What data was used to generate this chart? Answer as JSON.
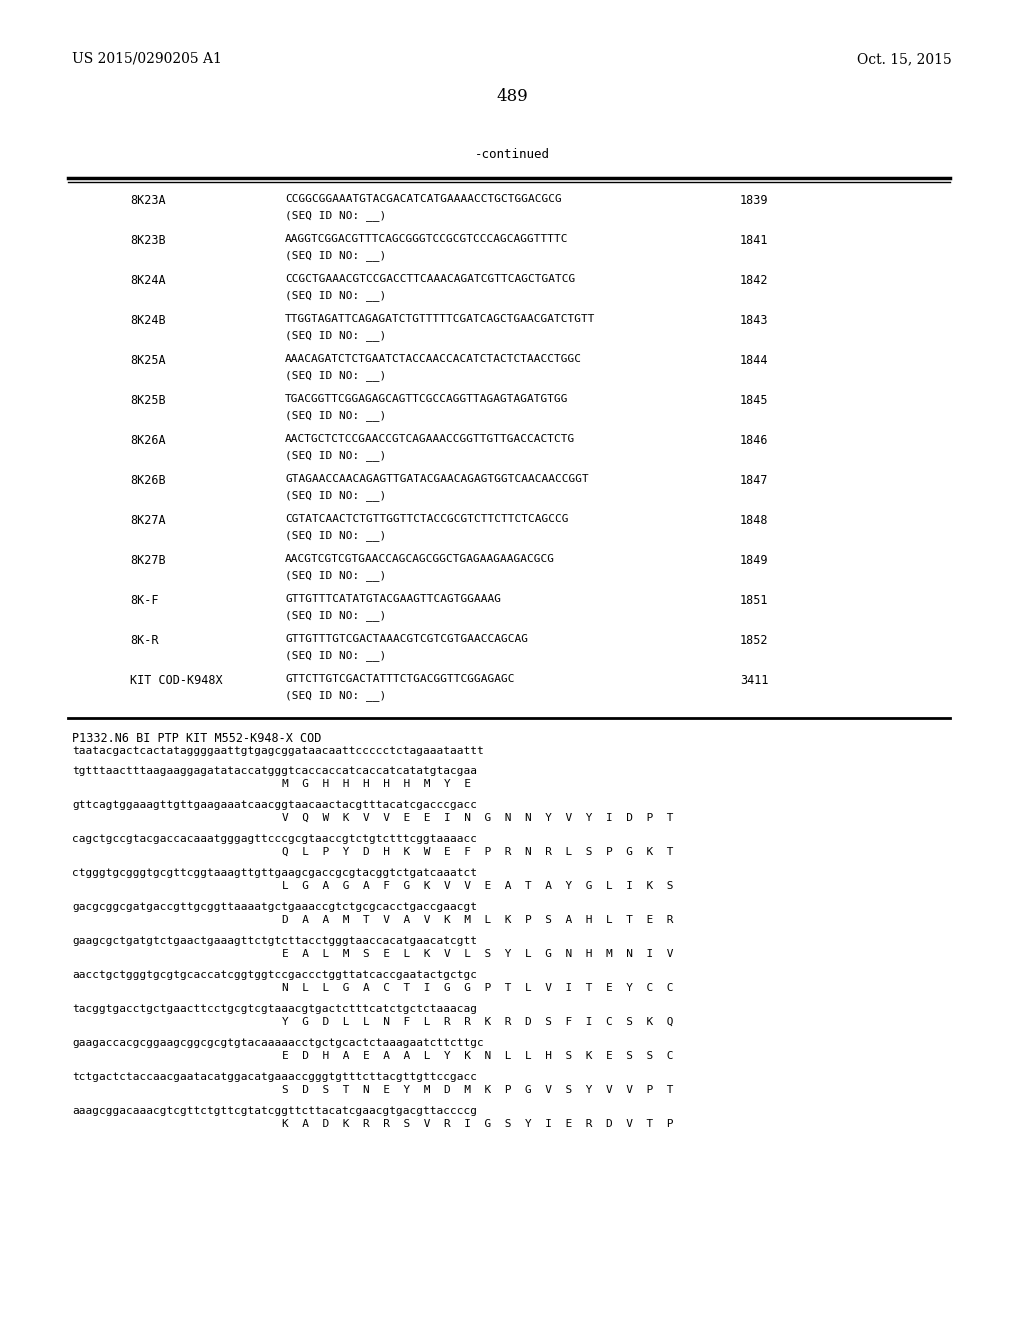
{
  "page_number": "489",
  "left_header": "US 2015/0290205 A1",
  "right_header": "Oct. 15, 2015",
  "continued_label": "-continued",
  "background_color": "#ffffff",
  "table_rows": [
    {
      "name": "8K23A",
      "seq": "CCGGCGGAAATGTACGACATCATGAAAACCTGCTGGACGCG",
      "seq_id": "(SEQ ID NO: __)",
      "num": "1839"
    },
    {
      "name": "8K23B",
      "seq": "AAGGTCGGACGTTTCAGCGGGTCCGCGTCCCAGCAGGTTTTC",
      "seq_id": "(SEQ ID NO: __)",
      "num": "1841"
    },
    {
      "name": "8K24A",
      "seq": "CCGCTGAAACGTCCGACCTTCAAACAGATCGTTCAGCTGATCG",
      "seq_id": "(SEQ ID NO: __)",
      "num": "1842"
    },
    {
      "name": "8K24B",
      "seq": "TTGGTAGATTCAGAGATCTGTTTTTCGATCAGCTGAACGATCTGTT",
      "seq_id": "(SEQ ID NO: __)",
      "num": "1843"
    },
    {
      "name": "8K25A",
      "seq": "AAACAGATCTCTGAATCTACCAACCACATCTACTCTAACCTGGC",
      "seq_id": "(SEQ ID NO: __)",
      "num": "1844"
    },
    {
      "name": "8K25B",
      "seq": "TGACGGTTCGGAGAGCAGTTCGCCAGGTTAGAGTAGATGTGG",
      "seq_id": "(SEQ ID NO: __)",
      "num": "1845"
    },
    {
      "name": "8K26A",
      "seq": "AACTGCTCTCCGAACCGTCAGAAACCGGTTGTTGACCACTCTG",
      "seq_id": "(SEQ ID NO: __)",
      "num": "1846"
    },
    {
      "name": "8K26B",
      "seq": "GTAGAACCAACAGAGTTGATACGAACAGAGTGGTCAACAACCGGT",
      "seq_id": "(SEQ ID NO: __)",
      "num": "1847"
    },
    {
      "name": "8K27A",
      "seq": "CGTATCAACTCTGTTGGTTCTACCGCGTCTTCTTCTCAGCCG",
      "seq_id": "(SEQ ID NO: __)",
      "num": "1848"
    },
    {
      "name": "8K27B",
      "seq": "AACGTCGTCGTGAACCAGCAGCGGCTGAGAAGAAGACGCG",
      "seq_id": "(SEQ ID NO: __)",
      "num": "1849"
    },
    {
      "name": "8K-F",
      "seq": "GTTGTTTCATATGTACGAAGTTCAGTGGAAAG",
      "seq_id": "(SEQ ID NO: __)",
      "num": "1851"
    },
    {
      "name": "8K-R",
      "seq": "GTTGTTTGTCGACTAAACGTCGTCGTGAACCAGCAG",
      "seq_id": "(SEQ ID NO: __)",
      "num": "1852"
    },
    {
      "name": "KIT COD-K948X",
      "seq": "GTTCTTGTCGACTATTTCTGACGGTTCGGAGAGC",
      "seq_id": "(SEQ ID NO: __)",
      "num": "3411"
    }
  ],
  "seq_title": "P1332.N6 BI PTP KIT M552-K948-X COD",
  "seq_line1_dna": "taatacgactcactataggggaattgtgagcggataacaattccccctctagaaataattt",
  "seq_lines": [
    {
      "dna": "tgtttaactttaagaaggagatataccatgggtcaccaccatcaccatcatatgtacgaa",
      "aa": "M  G  H  H  H  H  H  M  Y  E"
    },
    {
      "dna": "gttcagtggaaagttgttgaagaaatcaacggtaacaactacgtttacatcgacccgacc",
      "aa": "V  Q  W  K  V  V  E  E  I  N  G  N  N  Y  V  Y  I  D  P  T"
    },
    {
      "dna": "cagctgccgtacgaccacaaatgggagttcccgcgtaaccgtctgtctttcggtaaaacc",
      "aa": "Q  L  P  Y  D  H  K  W  E  F  P  R  N  R  L  S  P  G  K  T"
    },
    {
      "dna": "ctgggtgcgggtgcgttcggtaaagttgttgaagcgaccgcgtacggtctgatcaaatct",
      "aa": "L  G  A  G  A  F  G  K  V  V  E  A  T  A  Y  G  L  I  K  S"
    },
    {
      "dna": "gacgcggcgatgaccgttgcggttaaaatgctgaaaccgtctgcgcacctgaccgaacgt",
      "aa": "D  A  A  M  T  V  A  V  K  M  L  K  P  S  A  H  L  T  E  R"
    },
    {
      "dna": "gaagcgctgatgtctgaactgaaagttctgtcttacctgggtaaccacatgaacatcgtt",
      "aa": "E  A  L  M  S  E  L  K  V  L  S  Y  L  G  N  H  M  N  I  V"
    },
    {
      "dna": "aacctgctgggtgcgtgcaccatcggtggtccgaccctggttatcaccgaatactgctgc",
      "aa": "N  L  L  G  A  C  T  I  G  G  P  T  L  V  I  T  E  Y  C  C"
    },
    {
      "dna": "tacggtgacctgctgaacttcctgcgtcgtaaacgtgactctttcatctgctctaaacag",
      "aa": "Y  G  D  L  L  N  F  L  R  R  K  R  D  S  F  I  C  S  K  Q"
    },
    {
      "dna": "gaagaccacgcggaagcggcgcgtgtacaaaaacctgctgcactctaaagaatcttcttgc",
      "aa": "E  D  H  A  E  A  A  L  Y  K  N  L  L  H  S  K  E  S  S  C"
    },
    {
      "dna": "tctgactctaccaacgaatacatggacatgaaaccgggtgtttcttacgttgttccgacc",
      "aa": "S  D  S  T  N  E  Y  M  D  M  K  P  G  V  S  Y  V  V  P  T"
    },
    {
      "dna": "aaagcggacaaacgtcgttctgttcgtatcggttcttacatcgaacgtgacgttaccccg",
      "aa": "K  A  D  K  R  R  S  V  R  I  G  S  Y  I  E  R  D  V  T  P"
    }
  ]
}
